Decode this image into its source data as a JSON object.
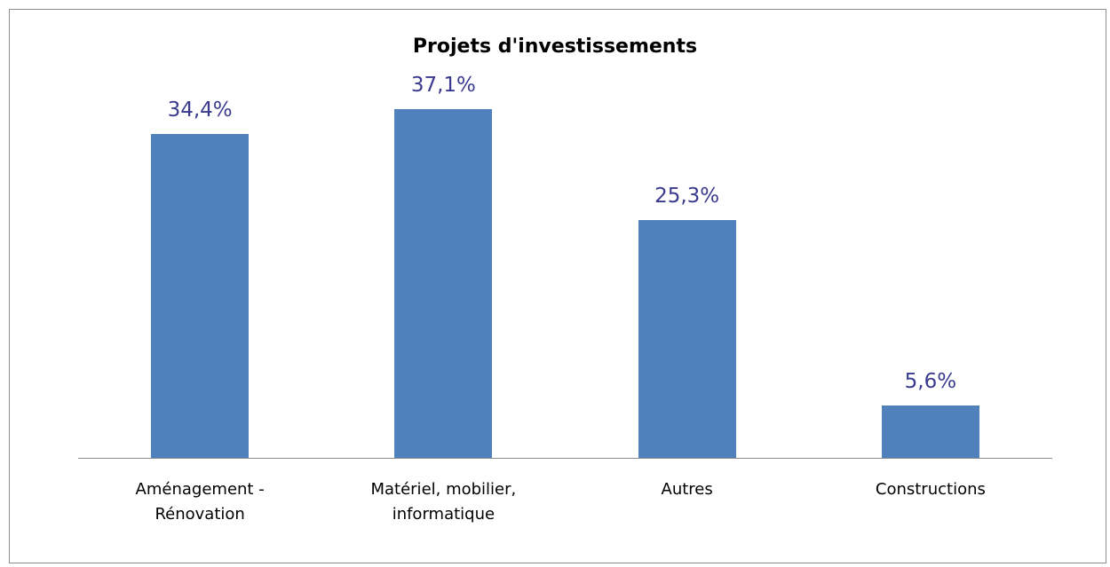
{
  "chart_data": {
    "type": "bar",
    "title": "Projets d'investissements",
    "categories": [
      "Aménagement - Rénovation",
      "Matériel, mobilier, informatique",
      "Autres",
      "Constructions"
    ],
    "values": [
      34.4,
      37.1,
      25.3,
      5.6
    ],
    "value_labels": [
      "34,4%",
      "37,1%",
      "25,3%",
      "5,6%"
    ],
    "color": "#4f81bd",
    "ylim": [
      0,
      40
    ]
  }
}
